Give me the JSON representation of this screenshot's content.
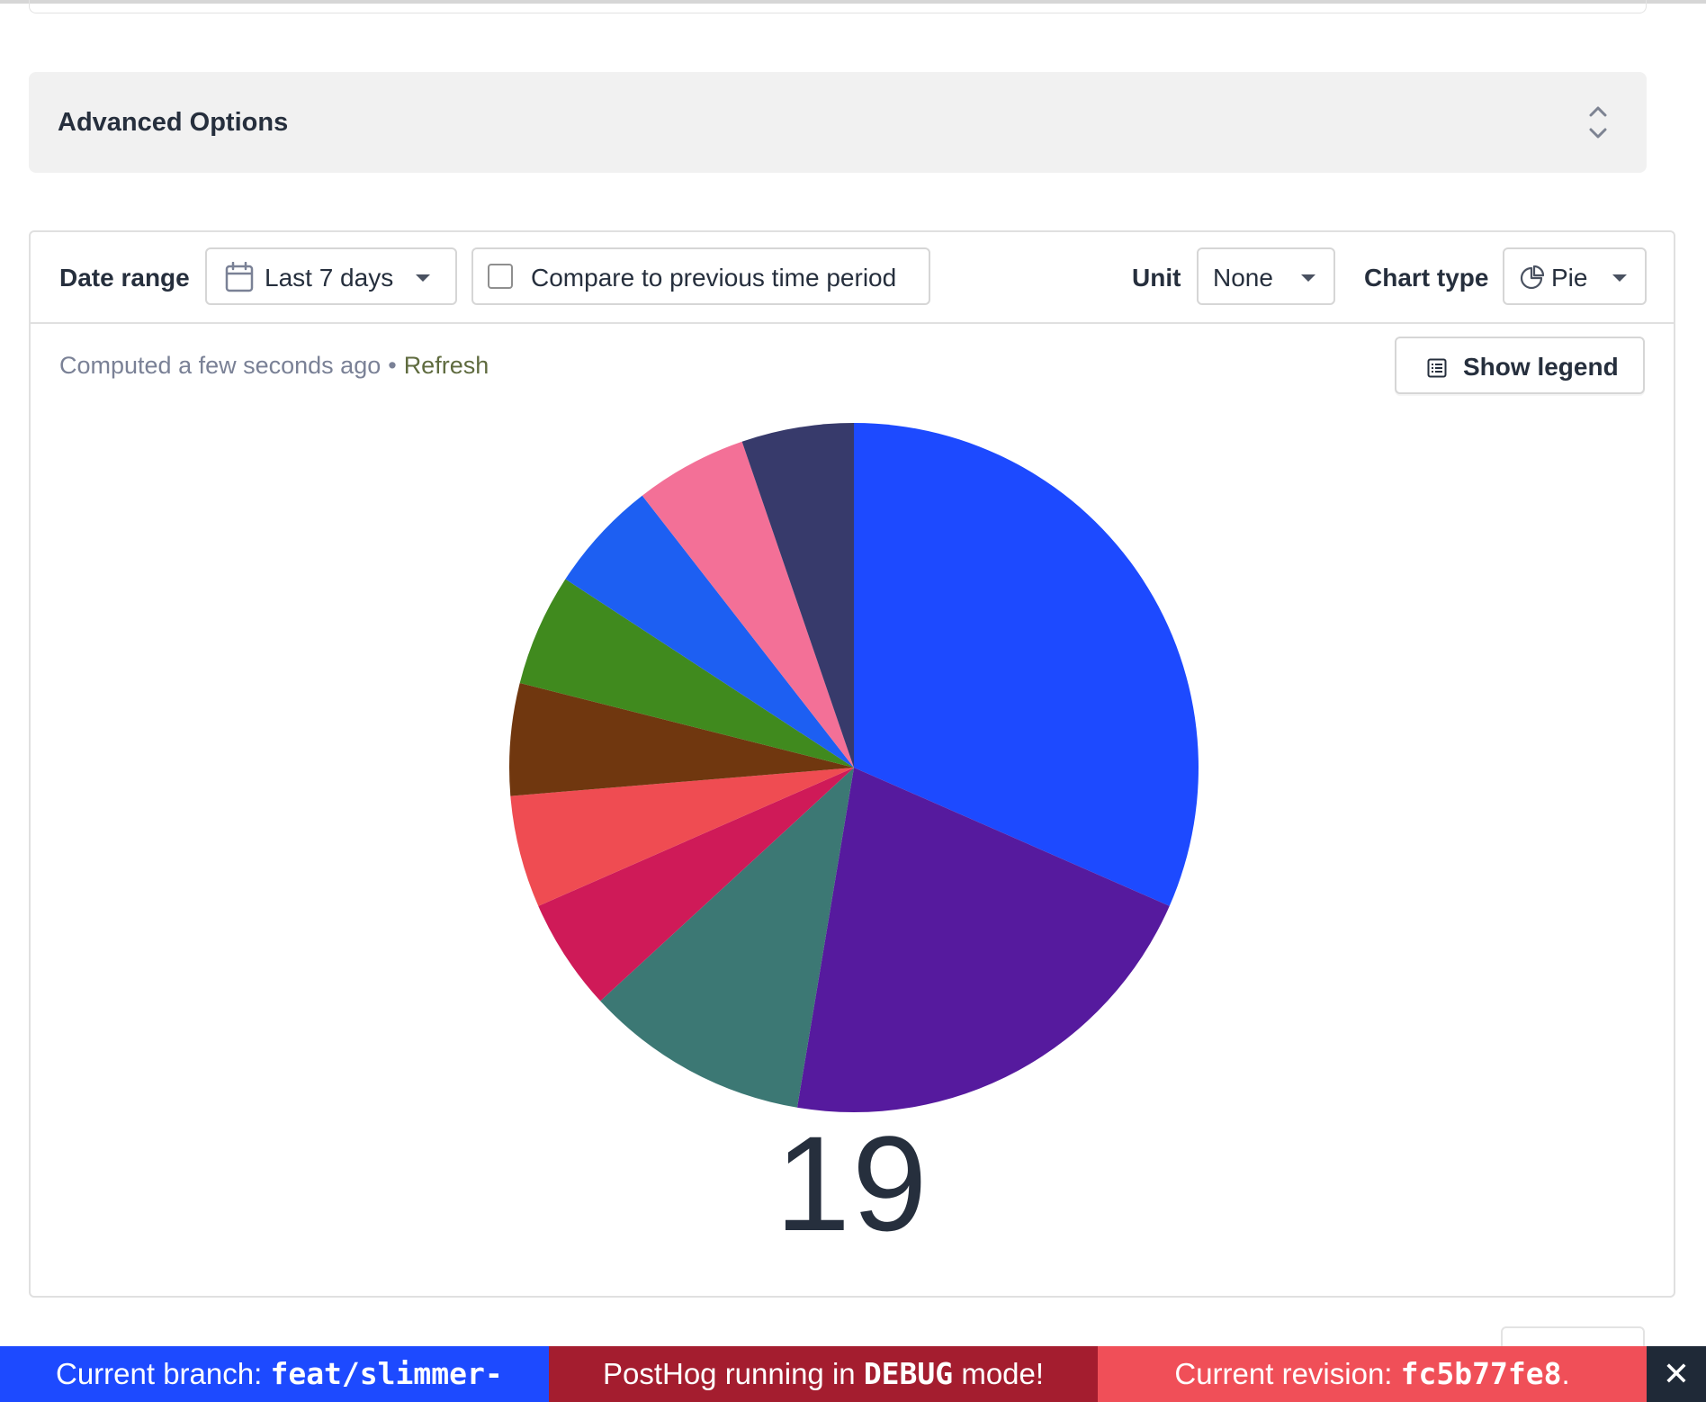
{
  "advanced_options": {
    "title": "Advanced Options"
  },
  "toolbar": {
    "date_range_label": "Date range",
    "date_range_value": "Last 7 days",
    "compare_label": "Compare to previous time period",
    "unit_label": "Unit",
    "unit_value": "None",
    "chart_type_label": "Chart type",
    "chart_type_value": "Pie"
  },
  "status": {
    "computed": "Computed a few seconds ago",
    "separator": "•",
    "refresh": "Refresh"
  },
  "legend_button": {
    "label": "Show legend"
  },
  "chart_data": {
    "type": "pie",
    "total": "19",
    "values": [
      6,
      4,
      2,
      1,
      1,
      1,
      1,
      1,
      1,
      1
    ],
    "colors": [
      "#1d4aff",
      "#561a9e",
      "#3c7874",
      "#cf1a58",
      "#ef4c52",
      "#70370f",
      "#408a1e",
      "#1d5ff2",
      "#f37097",
      "#373a6b"
    ]
  },
  "debug_bar": {
    "branch_label": "Current branch:",
    "branch_value": "feat/slimmer-",
    "mode_prefix": "PostHog running in",
    "mode_value": "DEBUG",
    "mode_suffix": "mode!",
    "revision_label": "Current revision:",
    "revision_value": "fc5b77fe8",
    "revision_suffix": ".",
    "close": "✕"
  }
}
